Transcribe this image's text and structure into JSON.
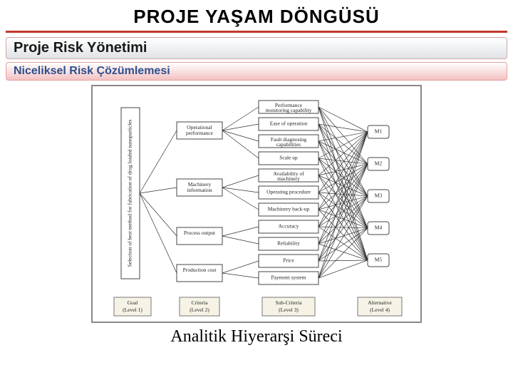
{
  "title": "PROJE YAŞAM DÖNGÜSÜ",
  "band1": {
    "text": "Proje Risk Yönetimi",
    "color": "#1a1a1a"
  },
  "band2": {
    "text": "Niceliksel Risk Çözümlemesi",
    "color": "#2d4f8f"
  },
  "diagram": {
    "border_color": "#888888",
    "edge_color": "#333333",
    "levels": {
      "l1": {
        "title": "Goal",
        "sub": "(Level 1)"
      },
      "l2": {
        "title": "Criteria",
        "sub": "(Level 2)"
      },
      "l3": {
        "title": "Sub-Criteria",
        "sub": "(Level 3)"
      },
      "l4": {
        "title": "Alternative",
        "sub": "(Level 4)"
      }
    },
    "goal": {
      "line1": "Selection of best method  for fabrication of drug loaded nanoparticles"
    },
    "criteria": [
      {
        "label": "Operational performance"
      },
      {
        "label": "Machinery information"
      },
      {
        "label": "Process output"
      },
      {
        "label": "Production cost"
      }
    ],
    "subcriteria": [
      {
        "l1": "Performance",
        "l2": "monitoring capability"
      },
      {
        "l1": "Ease of operation",
        "l2": ""
      },
      {
        "l1": "Fault diagnosing",
        "l2": "capabilities"
      },
      {
        "l1": "Scale up",
        "l2": ""
      },
      {
        "l1": "Availability of",
        "l2": "machinery"
      },
      {
        "l1": "Operating procedure",
        "l2": ""
      },
      {
        "l1": "Machinery back-up",
        "l2": ""
      },
      {
        "l1": "Accuracy",
        "l2": ""
      },
      {
        "l1": "Reliability",
        "l2": ""
      },
      {
        "l1": "Price",
        "l2": ""
      },
      {
        "l1": "Payment system",
        "l2": ""
      }
    ],
    "alternatives": [
      {
        "label": "M1"
      },
      {
        "label": "M2"
      },
      {
        "label": "M3"
      },
      {
        "label": "M4"
      },
      {
        "label": "M5"
      }
    ]
  },
  "caption": "Analitik Hiyerarşi Süreci"
}
